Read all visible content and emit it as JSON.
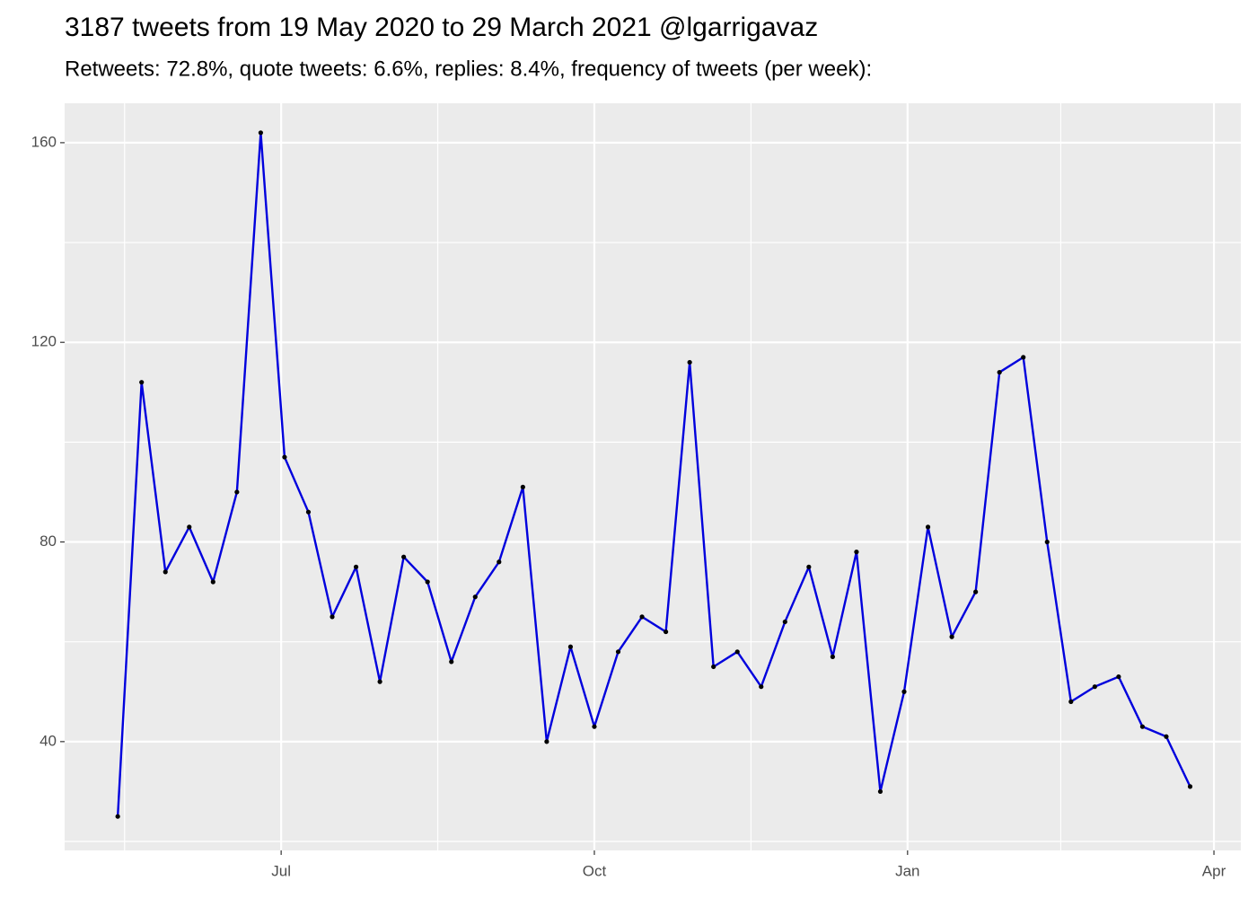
{
  "chart_data": {
    "type": "line",
    "title": "3187 tweets from 19 May 2020 to 29 March 2021 @lgarrigavaz",
    "subtitle": "Retweets: 72.8%, quote tweets: 6.6%, replies: 8.4%, frequency of tweets (per week):",
    "x": [
      0,
      7,
      14,
      21,
      28,
      35,
      42,
      49,
      56,
      63,
      70,
      77,
      84,
      91,
      98,
      105,
      112,
      119,
      126,
      133,
      140,
      147,
      154,
      161,
      168,
      175,
      182,
      189,
      196,
      203,
      210,
      217,
      224,
      231,
      238,
      245,
      252,
      259,
      266,
      273,
      280,
      287,
      294,
      301,
      308,
      315
    ],
    "values": [
      25,
      112,
      74,
      83,
      72,
      90,
      162,
      97,
      86,
      65,
      75,
      52,
      77,
      72,
      56,
      69,
      76,
      91,
      40,
      59,
      43,
      58,
      65,
      62,
      116,
      55,
      58,
      51,
      64,
      75,
      57,
      78,
      30,
      50,
      83,
      61,
      70,
      114,
      117,
      80,
      48,
      51,
      53,
      43,
      41,
      31
    ],
    "color": "#0000dd",
    "point_color": "#000000",
    "xlim": [
      -15.6,
      329.9
    ],
    "xticks": [
      {
        "value": 48,
        "label": "Jul"
      },
      {
        "value": 140,
        "label": "Oct"
      },
      {
        "value": 232,
        "label": "Jan"
      },
      {
        "value": 322,
        "label": "Apr"
      }
    ],
    "ylim": [
      18.2,
      167.9
    ],
    "yticks": [
      40,
      80,
      120,
      160
    ],
    "grid": true
  }
}
